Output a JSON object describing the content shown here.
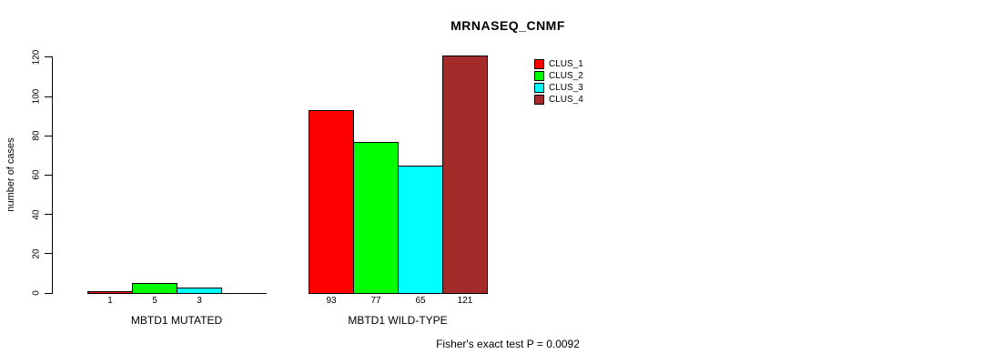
{
  "chart_data": {
    "type": "bar",
    "title": "MRNASEQ_CNMF",
    "ylabel": "number of cases",
    "ylim": [
      0,
      120
    ],
    "yticks": [
      0,
      20,
      40,
      60,
      80,
      100,
      120
    ],
    "grid": false,
    "legend_position": "top-right",
    "series": [
      {
        "name": "CLUS_1",
        "color": "#ff0000",
        "values": [
          1,
          93
        ]
      },
      {
        "name": "CLUS_2",
        "color": "#00ff00",
        "values": [
          5,
          77
        ]
      },
      {
        "name": "CLUS_3",
        "color": "#00ffff",
        "values": [
          3,
          65
        ]
      },
      {
        "name": "CLUS_4",
        "color": "#a52a2a",
        "values": [
          0,
          121
        ]
      }
    ],
    "groups": [
      {
        "label": "MBTD1 MUTATED",
        "values": [
          1,
          5,
          3,
          0
        ],
        "bar_labels": [
          "1",
          "5",
          "3",
          ""
        ]
      },
      {
        "label": "MBTD1 WILD-TYPE",
        "values": [
          93,
          77,
          65,
          121
        ],
        "bar_labels": [
          "93",
          "77",
          "65",
          "121"
        ]
      }
    ],
    "footer": "Fisher's exact test P = 0.0092"
  }
}
